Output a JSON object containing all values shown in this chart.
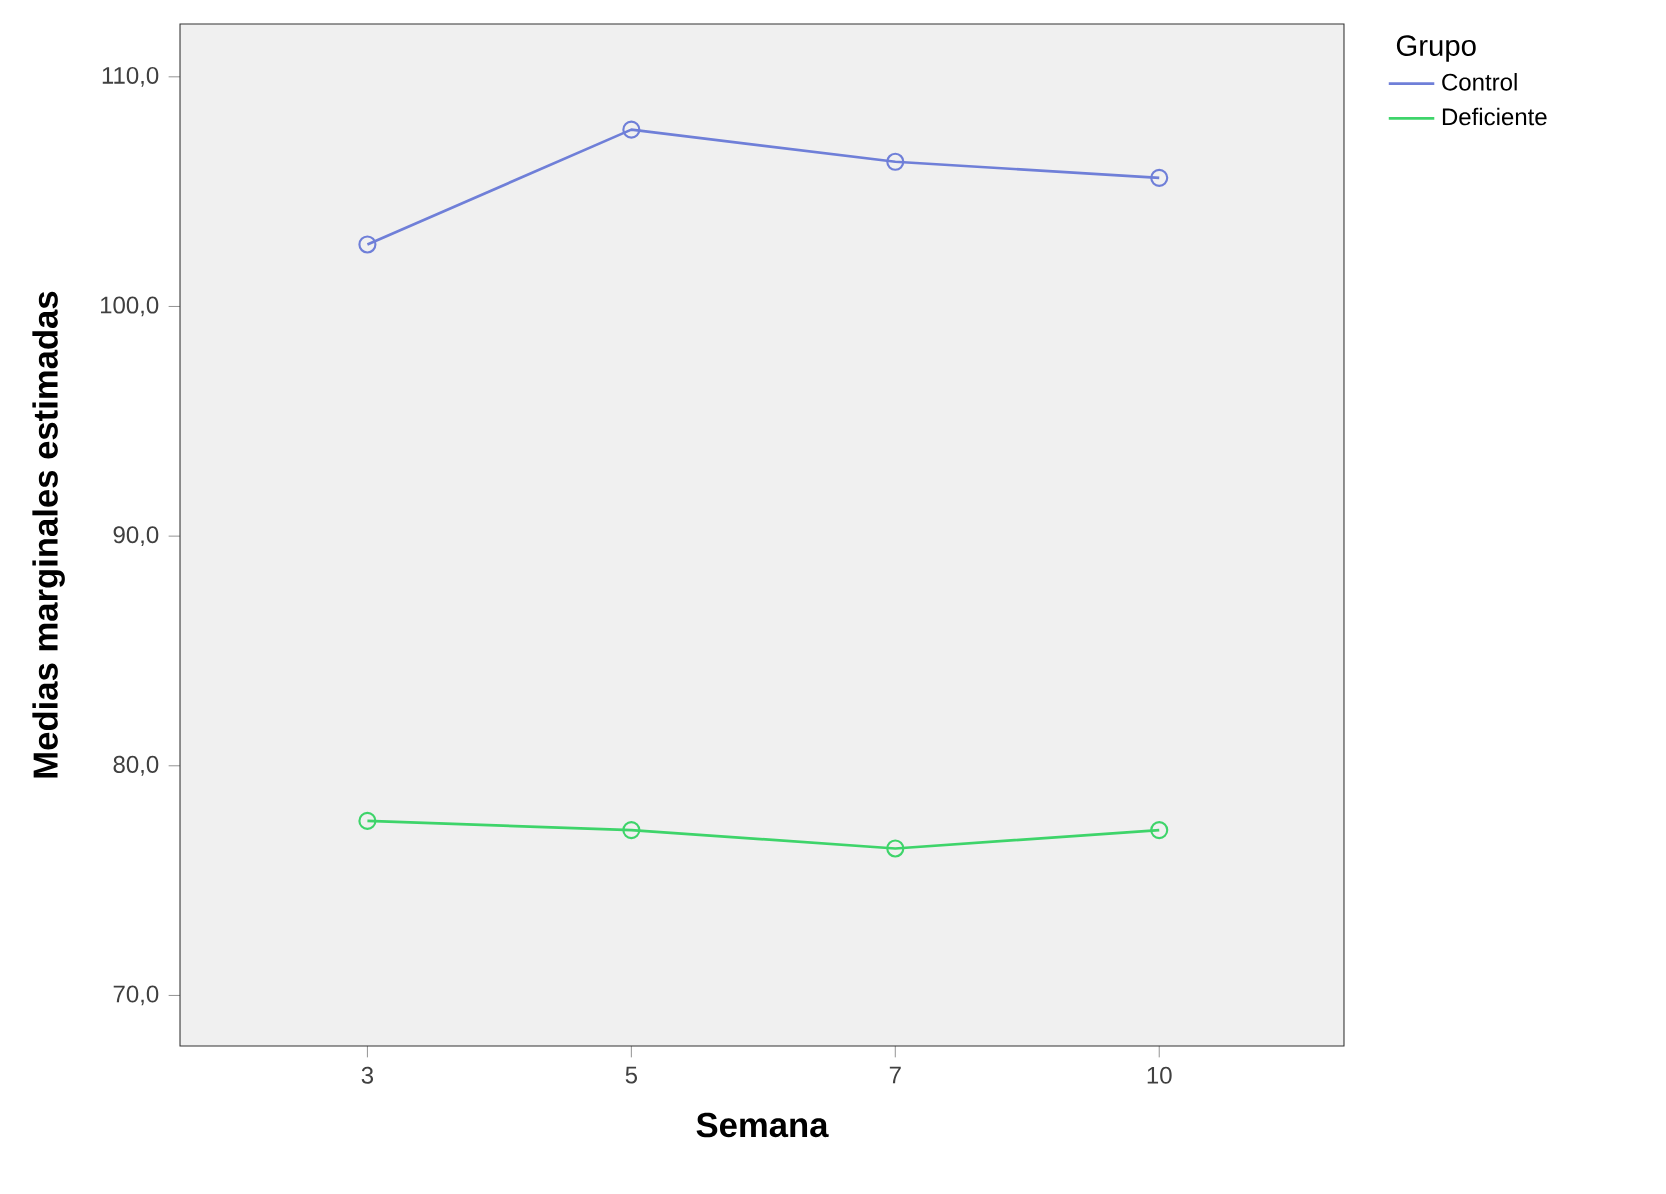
{
  "chart_data": {
    "type": "line",
    "xlabel": "Semana",
    "ylabel": "Medias marginales estimadas",
    "legend_title": "Grupo",
    "legend": "top right",
    "marker": "circle",
    "categories": [
      "3",
      "5",
      "7",
      "10"
    ],
    "ylim": [
      67.8,
      112.3
    ],
    "yticks": [
      {
        "value": 70,
        "label": "70,0"
      },
      {
        "value": 80,
        "label": "80,0"
      },
      {
        "value": 90,
        "label": "90,0"
      },
      {
        "value": 100,
        "label": "100,0"
      },
      {
        "value": 110,
        "label": "110,0"
      }
    ],
    "series": [
      {
        "name": "Control",
        "color": "#6f7fd8",
        "values": [
          102.7,
          107.7,
          106.3,
          105.6
        ]
      },
      {
        "name": "Deficiente",
        "color": "#3ed46a",
        "values": [
          77.6,
          77.2,
          76.4,
          77.2
        ]
      }
    ]
  }
}
